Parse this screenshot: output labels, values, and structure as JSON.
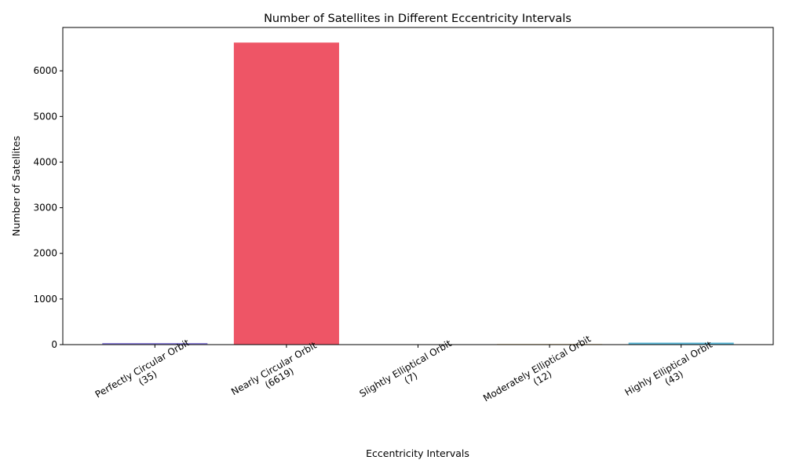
{
  "chart_data": {
    "type": "bar",
    "title": "Number of Satellites in Different Eccentricity Intervals",
    "xlabel": "Eccentricity Intervals",
    "ylabel": "Number of Satellites",
    "categories": [
      {
        "name": "Perfectly Circular Orbit",
        "count_label": "(35)"
      },
      {
        "name": "Nearly Circular Orbit",
        "count_label": "(6619)"
      },
      {
        "name": "Slightly Elliptical Orbit",
        "count_label": "(7)"
      },
      {
        "name": "Moderately Elliptical Orbit",
        "count_label": "(12)"
      },
      {
        "name": "Highly Elliptical Orbit",
        "count_label": "(43)"
      }
    ],
    "values": [
      35,
      6619,
      7,
      12,
      43
    ],
    "colors": [
      "#8b7fd9",
      "#ee5566",
      "#3a9e5a",
      "#f0b85a",
      "#5ab8d8"
    ],
    "ylim": [
      0,
      6950
    ],
    "yticks": [
      0,
      1000,
      2000,
      3000,
      4000,
      5000,
      6000
    ],
    "grid": false,
    "legend": "none"
  }
}
